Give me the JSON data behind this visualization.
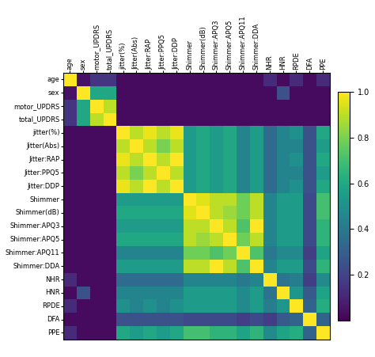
{
  "labels": [
    "age",
    "sex",
    "motor_UPDRS",
    "total_UPDRS",
    "jitter(%)",
    "Jitter(Abs)",
    "Jitter:RAP",
    "Jitter:PPQ5",
    "Jitter:DDP",
    "Shimmer",
    "Shimmer(dB)",
    "Shimmer:APQ3",
    "Shimmer:APQ5",
    "Shimmer:APQ11",
    "Shimmer:DDA",
    "NHR",
    "HNR",
    "RPDE",
    "DFA",
    "PPE"
  ],
  "matrix": [
    [
      1.0,
      0.05,
      0.15,
      0.15,
      0.03,
      0.03,
      0.03,
      0.03,
      0.03,
      0.03,
      0.03,
      0.03,
      0.03,
      0.03,
      0.03,
      0.12,
      0.03,
      0.12,
      0.03,
      0.12
    ],
    [
      0.05,
      1.0,
      0.6,
      0.6,
      0.03,
      0.03,
      0.03,
      0.03,
      0.03,
      0.03,
      0.03,
      0.03,
      0.03,
      0.03,
      0.03,
      0.03,
      0.25,
      0.03,
      0.03,
      0.03
    ],
    [
      0.15,
      0.6,
      1.0,
      0.9,
      0.03,
      0.03,
      0.03,
      0.03,
      0.03,
      0.03,
      0.03,
      0.03,
      0.03,
      0.03,
      0.03,
      0.03,
      0.03,
      0.03,
      0.03,
      0.03
    ],
    [
      0.15,
      0.6,
      0.9,
      1.0,
      0.03,
      0.03,
      0.03,
      0.03,
      0.03,
      0.03,
      0.03,
      0.03,
      0.03,
      0.03,
      0.03,
      0.03,
      0.03,
      0.03,
      0.03,
      0.03
    ],
    [
      0.03,
      0.03,
      0.03,
      0.03,
      1.0,
      0.9,
      0.97,
      0.9,
      0.97,
      0.55,
      0.6,
      0.55,
      0.6,
      0.45,
      0.55,
      0.35,
      0.45,
      0.5,
      0.25,
      0.6
    ],
    [
      0.03,
      0.03,
      0.03,
      0.03,
      0.9,
      1.0,
      0.9,
      0.8,
      0.9,
      0.55,
      0.6,
      0.55,
      0.6,
      0.45,
      0.55,
      0.35,
      0.45,
      0.45,
      0.25,
      0.55
    ],
    [
      0.03,
      0.03,
      0.03,
      0.03,
      0.97,
      0.9,
      1.0,
      0.9,
      1.0,
      0.55,
      0.6,
      0.55,
      0.6,
      0.45,
      0.55,
      0.35,
      0.45,
      0.5,
      0.25,
      0.6
    ],
    [
      0.03,
      0.03,
      0.03,
      0.03,
      0.9,
      0.8,
      0.9,
      1.0,
      0.9,
      0.55,
      0.6,
      0.55,
      0.6,
      0.45,
      0.55,
      0.35,
      0.45,
      0.45,
      0.25,
      0.55
    ],
    [
      0.03,
      0.03,
      0.03,
      0.03,
      0.97,
      0.9,
      1.0,
      0.9,
      1.0,
      0.55,
      0.6,
      0.55,
      0.6,
      0.45,
      0.55,
      0.35,
      0.45,
      0.5,
      0.25,
      0.6
    ],
    [
      0.03,
      0.03,
      0.03,
      0.03,
      0.55,
      0.55,
      0.55,
      0.55,
      0.55,
      1.0,
      0.95,
      0.9,
      0.9,
      0.78,
      0.9,
      0.45,
      0.55,
      0.55,
      0.22,
      0.7
    ],
    [
      0.03,
      0.03,
      0.03,
      0.03,
      0.6,
      0.6,
      0.6,
      0.6,
      0.6,
      0.95,
      1.0,
      0.9,
      0.85,
      0.78,
      0.9,
      0.45,
      0.55,
      0.55,
      0.22,
      0.7
    ],
    [
      0.03,
      0.03,
      0.03,
      0.03,
      0.55,
      0.55,
      0.55,
      0.55,
      0.55,
      0.9,
      0.9,
      1.0,
      0.9,
      0.72,
      1.0,
      0.45,
      0.55,
      0.55,
      0.22,
      0.65
    ],
    [
      0.03,
      0.03,
      0.03,
      0.03,
      0.6,
      0.6,
      0.6,
      0.6,
      0.6,
      0.9,
      0.85,
      0.9,
      1.0,
      0.78,
      0.9,
      0.45,
      0.55,
      0.55,
      0.22,
      0.65
    ],
    [
      0.03,
      0.03,
      0.03,
      0.03,
      0.45,
      0.45,
      0.45,
      0.45,
      0.45,
      0.78,
      0.78,
      0.72,
      0.78,
      1.0,
      0.72,
      0.4,
      0.48,
      0.48,
      0.18,
      0.58
    ],
    [
      0.03,
      0.03,
      0.03,
      0.03,
      0.55,
      0.55,
      0.55,
      0.55,
      0.55,
      0.9,
      0.9,
      1.0,
      0.9,
      0.72,
      1.0,
      0.45,
      0.55,
      0.55,
      0.22,
      0.65
    ],
    [
      0.12,
      0.03,
      0.03,
      0.03,
      0.35,
      0.35,
      0.35,
      0.35,
      0.35,
      0.45,
      0.45,
      0.45,
      0.45,
      0.4,
      0.45,
      1.0,
      0.38,
      0.42,
      0.18,
      0.48
    ],
    [
      0.03,
      0.25,
      0.03,
      0.03,
      0.45,
      0.45,
      0.45,
      0.45,
      0.45,
      0.55,
      0.55,
      0.55,
      0.55,
      0.48,
      0.55,
      0.38,
      1.0,
      0.52,
      0.28,
      0.58
    ],
    [
      0.12,
      0.03,
      0.03,
      0.03,
      0.5,
      0.45,
      0.5,
      0.45,
      0.5,
      0.55,
      0.55,
      0.55,
      0.55,
      0.48,
      0.55,
      0.42,
      0.52,
      1.0,
      0.32,
      0.62
    ],
    [
      0.03,
      0.03,
      0.03,
      0.03,
      0.25,
      0.25,
      0.25,
      0.25,
      0.25,
      0.22,
      0.22,
      0.22,
      0.22,
      0.18,
      0.22,
      0.18,
      0.28,
      0.32,
      1.0,
      0.32
    ],
    [
      0.12,
      0.03,
      0.03,
      0.03,
      0.6,
      0.55,
      0.6,
      0.55,
      0.6,
      0.7,
      0.7,
      0.65,
      0.65,
      0.58,
      0.65,
      0.48,
      0.58,
      0.62,
      0.32,
      1.0
    ]
  ],
  "cmap": "viridis",
  "vmin": 0.0,
  "vmax": 1.0,
  "colorbar_ticks": [
    0.2,
    0.4,
    0.6,
    0.8,
    1.0
  ],
  "figsize": [
    4.74,
    4.51
  ],
  "dpi": 100,
  "tick_fontsize": 6.0,
  "cbar_fontsize": 7.0
}
